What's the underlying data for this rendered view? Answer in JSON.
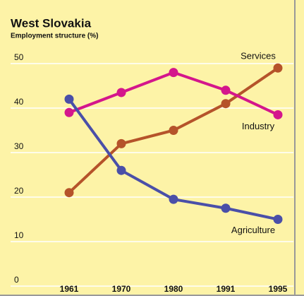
{
  "chart_data": {
    "type": "line",
    "title": "West Slovakia",
    "subtitle": "Employment structure (%)",
    "categories": [
      "1961",
      "1970",
      "1980",
      "1991",
      "1995"
    ],
    "series": [
      {
        "name": "Services",
        "color": "#b5532a",
        "values": [
          21,
          32,
          35,
          41,
          49
        ]
      },
      {
        "name": "Industry",
        "color": "#d4168c",
        "values": [
          39,
          43.5,
          48,
          44,
          38.5
        ]
      },
      {
        "name": "Agriculture",
        "color": "#4a4fa8",
        "values": [
          42,
          26,
          19.5,
          17.5,
          15
        ]
      }
    ],
    "ylim": [
      0,
      50
    ],
    "yticks": [
      0,
      10,
      20,
      30,
      40,
      50
    ],
    "grid": true
  }
}
